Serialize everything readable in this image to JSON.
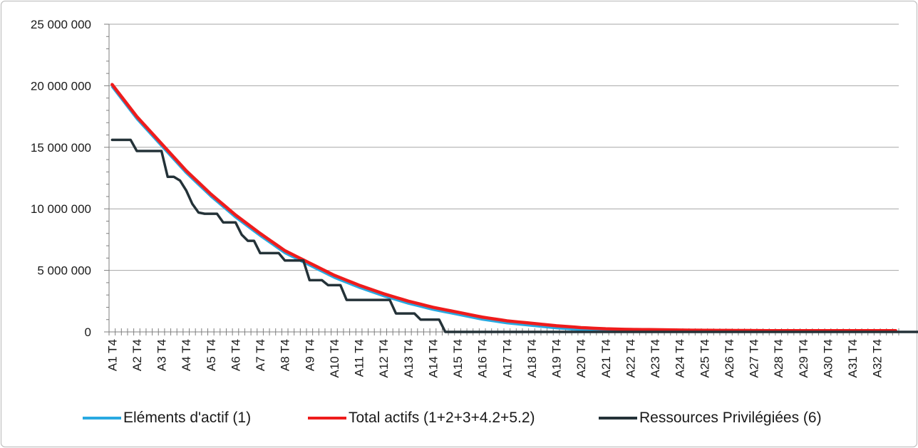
{
  "chart_data": {
    "type": "line",
    "y_ticks": [
      "0",
      "5 000 000",
      "10 000 000",
      "15 000 000",
      "20 000 000",
      "25 000 000"
    ],
    "y_tick_values": [
      0,
      5000000,
      10000000,
      15000000,
      20000000,
      25000000
    ],
    "ylim": [
      0,
      25000000
    ],
    "x_category_labels": [
      "A1 T4",
      "A2 T4",
      "A3 T4",
      "A4 T4",
      "A5 T4",
      "A6 T4",
      "A7 T4",
      "A8 T4",
      "A9 T4",
      "A10 T4",
      "A11 T4",
      "A12 T4",
      "A13 T4",
      "A14 T4",
      "A15 T4",
      "A16 T4",
      "A17 T4",
      "A18 T4",
      "A19 T4",
      "A20 T4",
      "A21 T4",
      "A22 T4",
      "A23 T4",
      "A24 T4",
      "A25 T4",
      "A26 T4",
      "A27 T4",
      "A28 T4",
      "A29 T4",
      "A30 T4",
      "A31 T4",
      "A32 T4"
    ],
    "points_per_label": 4,
    "grid": "horizontal",
    "legend_position": "bottom",
    "series": [
      {
        "name": "Eléments d'actif (1)",
        "color": "#29a9e1",
        "values_at_labels": [
          19900000,
          17300000,
          15100000,
          12900000,
          11000000,
          9300000,
          7800000,
          6400000,
          5400000,
          4400000,
          3600000,
          2900000,
          2300000,
          1800000,
          1400000,
          1000000,
          700000,
          500000,
          300000,
          150000,
          80000,
          60000,
          50000,
          40000,
          30000,
          20000,
          20000,
          15000,
          10000,
          10000,
          10000,
          10000
        ]
      },
      {
        "name": "Total actifs (1+2+3+4.2+5.2)",
        "color": "#ee1c1c",
        "values_at_labels": [
          20100000,
          17500000,
          15300000,
          13100000,
          11200000,
          9500000,
          8000000,
          6600000,
          5600000,
          4600000,
          3800000,
          3100000,
          2500000,
          2000000,
          1600000,
          1200000,
          900000,
          700000,
          500000,
          350000,
          250000,
          200000,
          180000,
          150000,
          130000,
          120000,
          110000,
          100000,
          100000,
          100000,
          100000,
          100000
        ]
      },
      {
        "name": "Ressources Privilégiées (6)",
        "color": "#243238",
        "values": [
          15600000,
          15600000,
          15600000,
          15600000,
          14700000,
          14700000,
          14700000,
          14700000,
          14700000,
          12600000,
          12600000,
          12300000,
          11500000,
          10400000,
          9700000,
          9600000,
          9600000,
          9600000,
          8900000,
          8900000,
          8900000,
          7900000,
          7400000,
          7400000,
          6400000,
          6400000,
          6400000,
          6400000,
          5800000,
          5800000,
          5800000,
          5800000,
          4200000,
          4200000,
          4200000,
          3800000,
          3800000,
          3800000,
          2600000,
          2600000,
          2600000,
          2600000,
          2600000,
          2600000,
          2600000,
          2600000,
          1500000,
          1500000,
          1500000,
          1500000,
          1000000,
          1000000,
          1000000,
          1000000,
          0,
          0,
          0,
          0,
          0,
          0,
          0,
          0,
          0,
          0,
          0,
          0,
          0,
          0,
          0,
          0,
          0,
          0,
          0,
          0,
          0,
          0,
          0,
          0,
          0,
          0,
          0,
          0,
          0,
          0,
          0,
          0,
          0,
          0,
          0,
          0,
          0,
          0,
          0,
          0,
          0,
          0,
          0,
          0,
          0,
          0,
          0,
          0,
          0,
          0,
          0,
          0,
          0,
          0,
          0,
          0,
          0,
          0,
          0,
          0,
          0,
          0,
          0,
          0,
          0,
          0,
          0,
          0,
          0,
          0,
          0,
          0,
          0,
          0,
          0,
          0,
          0,
          0
        ]
      }
    ]
  }
}
